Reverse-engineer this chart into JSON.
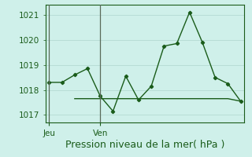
{
  "title": "Pression niveau de la mer( hPa )",
  "bg_color": "#cff0ea",
  "line_color": "#1a5c1a",
  "grid_color": "#b8ddd6",
  "vline_color": "#5a6a5a",
  "ylim": [
    1016.7,
    1021.4
  ],
  "yticks": [
    1017,
    1018,
    1019,
    1020,
    1021
  ],
  "xlim": [
    -0.3,
    15.3
  ],
  "series1_x": [
    0,
    1,
    2,
    3,
    4,
    5,
    6,
    7,
    8,
    9,
    10,
    11,
    12,
    13,
    14,
    15
  ],
  "series1_y": [
    1018.3,
    1018.3,
    1018.6,
    1018.85,
    1017.75,
    1017.15,
    1018.55,
    1017.6,
    1018.15,
    1019.75,
    1019.85,
    1021.1,
    1019.9,
    1018.5,
    1018.25,
    1017.55
  ],
  "series2_x": [
    2,
    3,
    4,
    5,
    6,
    7,
    8,
    9,
    10,
    11,
    12,
    13,
    14,
    15
  ],
  "series2_y": [
    1017.65,
    1017.65,
    1017.65,
    1017.65,
    1017.65,
    1017.65,
    1017.65,
    1017.65,
    1017.65,
    1017.65,
    1017.65,
    1017.65,
    1017.65,
    1017.55
  ],
  "jeu_x": 0,
  "ven_x": 4,
  "xlabel_jeu": "Jeu",
  "xlabel_ven": "Ven",
  "title_fontsize": 9,
  "tick_fontsize": 7.5,
  "ylabel_color": "#2a5a2a"
}
